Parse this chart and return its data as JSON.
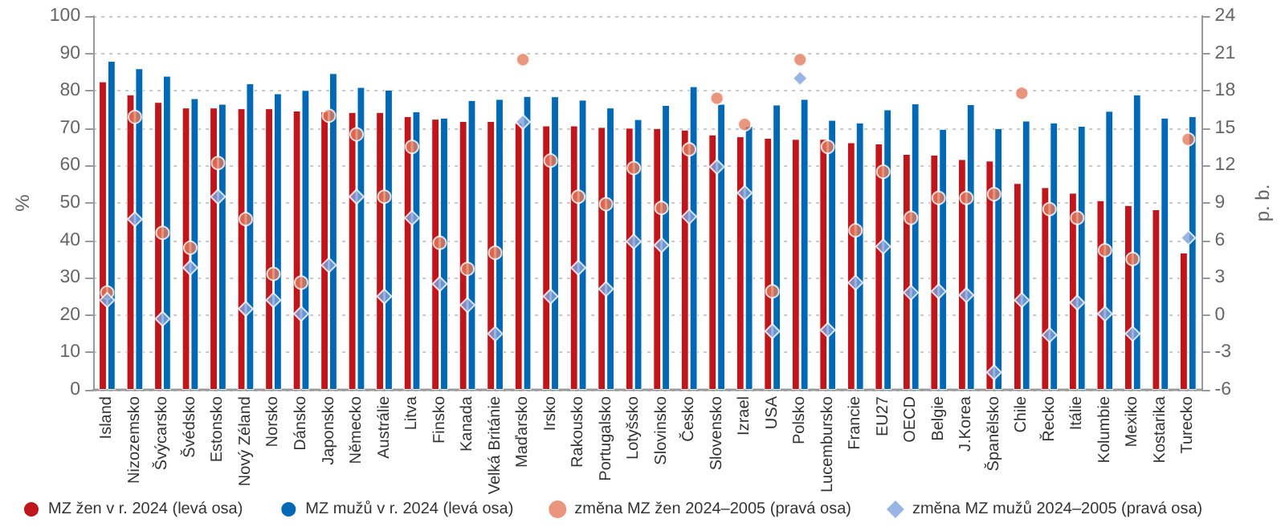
{
  "chart_data": {
    "type": "bar",
    "ylabel": "%",
    "y2label": "p. b.",
    "categories": [
      "Island",
      "Nizozemsko",
      "Švýcarsko",
      "Švédsko",
      "Estonsko",
      "Nový Zéland",
      "Norsko",
      "Dánsko",
      "Japonsko",
      "Německo",
      "Austrálie",
      "Litva",
      "Finsko",
      "Kanada",
      "Velká Británie",
      "Maďarsko",
      "Irsko",
      "Rakousko",
      "Portugalsko",
      "Lotyšsko",
      "Slovinsko",
      "Česko",
      "Slovensko",
      "Izrael",
      "USA",
      "Polsko",
      "Lucembursko",
      "Francie",
      "EU27",
      "OECD",
      "Belgie",
      "J.Korea",
      "Španělsko",
      "Chile",
      "Řecko",
      "Itálie",
      "Kolumbie",
      "Mexiko",
      "Kostarika",
      "Turecko"
    ],
    "series": [
      {
        "name": "MZ žen v r. 2024 (levá osa)",
        "color": "#c0161b",
        "values": [
          82.5,
          79,
          77,
          75.5,
          75.5,
          75.3,
          75.3,
          74.7,
          74.5,
          74.3,
          74.3,
          73.2,
          72.5,
          71.9,
          71.9,
          71.4,
          70.7,
          70.7,
          70.3,
          70.1,
          70,
          69.6,
          68.3,
          67.8,
          67.4,
          67.1,
          67.1,
          66.2,
          65.9,
          63.1,
          62.9,
          61.7,
          61.3,
          55.3,
          54.2,
          52.7,
          50.7,
          49.4,
          48.3,
          36.7
        ]
      },
      {
        "name": "MZ mužů v r. 2024 (levá osa)",
        "color": "#0068b4",
        "values": [
          88,
          86,
          84,
          78,
          76.5,
          82,
          79.3,
          80.2,
          84.7,
          81,
          80.3,
          74.5,
          72.8,
          77.5,
          77.8,
          78.6,
          78.5,
          77.6,
          75.5,
          72.4,
          76.2,
          81.2,
          76.5,
          70.6,
          76.3,
          77.8,
          72.2,
          71.5,
          75,
          76.6,
          69.8,
          76.4,
          70,
          72,
          71.5,
          70.6,
          74.6,
          79,
          72.8,
          73.2
        ]
      },
      {
        "name": "změna MZ žen 2024–2005 (pravá osa)",
        "type": "scatter",
        "axis": "y2",
        "marker": "circle",
        "color": "#e57b5c",
        "values": [
          1.8,
          15.9,
          6.6,
          5.4,
          12.2,
          7.7,
          3.3,
          2.6,
          16,
          14.5,
          9.5,
          13.5,
          5.8,
          3.7,
          5,
          20.5,
          12.4,
          9.5,
          8.9,
          11.8,
          8.6,
          13.3,
          17.4,
          15.3,
          1.9,
          20.5,
          13.5,
          6.8,
          11.5,
          7.8,
          9.4,
          9.4,
          9.7,
          17.8,
          8.5,
          7.8,
          5.2,
          4.5,
          null,
          14.1
        ]
      },
      {
        "name": "změna MZ mužů 2024–2005 (pravá osa)",
        "type": "scatter",
        "axis": "y2",
        "marker": "diamond",
        "color": "#7fa3dd",
        "values": [
          1.2,
          7.7,
          -0.3,
          3.8,
          9.5,
          0.5,
          1.2,
          0.1,
          4,
          9.5,
          1.5,
          7.8,
          2.5,
          0.8,
          -1.5,
          15.5,
          1.5,
          3.8,
          2.1,
          5.9,
          5.6,
          7.9,
          11.9,
          9.8,
          -1.3,
          19,
          -1.2,
          2.6,
          5.5,
          1.8,
          1.9,
          1.6,
          -4.6,
          1.2,
          -1.6,
          1,
          0.1,
          -1.5,
          null,
          6.2
        ]
      }
    ],
    "ylim": [
      0,
      100
    ],
    "yticks": [
      0,
      10,
      20,
      30,
      40,
      50,
      60,
      70,
      80,
      90,
      100
    ],
    "y2lim": [
      -6,
      24
    ],
    "y2ticks": [
      -6,
      -3,
      0,
      3,
      6,
      9,
      12,
      15,
      18,
      21,
      24
    ],
    "grid": "y",
    "legend": "bottom"
  }
}
